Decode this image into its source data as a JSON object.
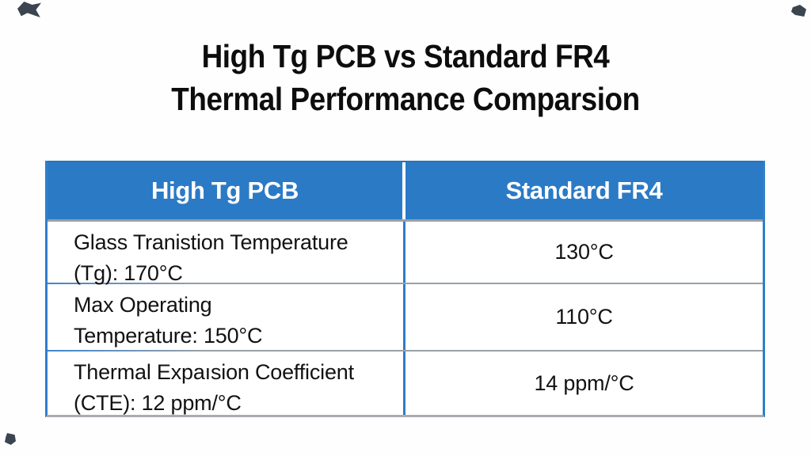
{
  "title": {
    "line1": "High Tg PCB vs Standard FR4",
    "line2": "Thermal Performance Comparsion"
  },
  "table": {
    "headers": [
      "High Tg PCB",
      "Standard FR4"
    ],
    "rows": [
      {
        "parameter_line1": "Glass Tranistion Temperature",
        "parameter_line2": "(Tg): 170°C",
        "value": "130°C"
      },
      {
        "parameter_line1": "Max Operating",
        "parameter_line2": "Temperature: 150°C",
        "value": "110°C"
      },
      {
        "parameter_line1": "Thermal Expaısion Coefficient",
        "parameter_line2": "(CTE): 12 ppm/°C",
        "value": "14 ppm/°C"
      }
    ]
  },
  "chart_data": {
    "type": "table",
    "title": "High Tg PCB vs Standard FR4 Thermal Performance Comparsion",
    "columns": [
      "High Tg PCB",
      "Standard FR4"
    ],
    "rows": [
      [
        "Glass Tranistion Temperature (Tg): 170°C",
        "130°C"
      ],
      [
        "Max Operating Temperature: 150°C",
        "110°C"
      ],
      [
        "Thermal Expaısion Coefficient (CTE): 12 ppm/°C",
        "14 ppm/°C"
      ]
    ]
  },
  "colors": {
    "header_blue": "#2b7ac6",
    "border_blue": "#2f7fca",
    "separator_gray": "#9aa0a6",
    "text_black": "#121212",
    "background": "#fefefe"
  }
}
